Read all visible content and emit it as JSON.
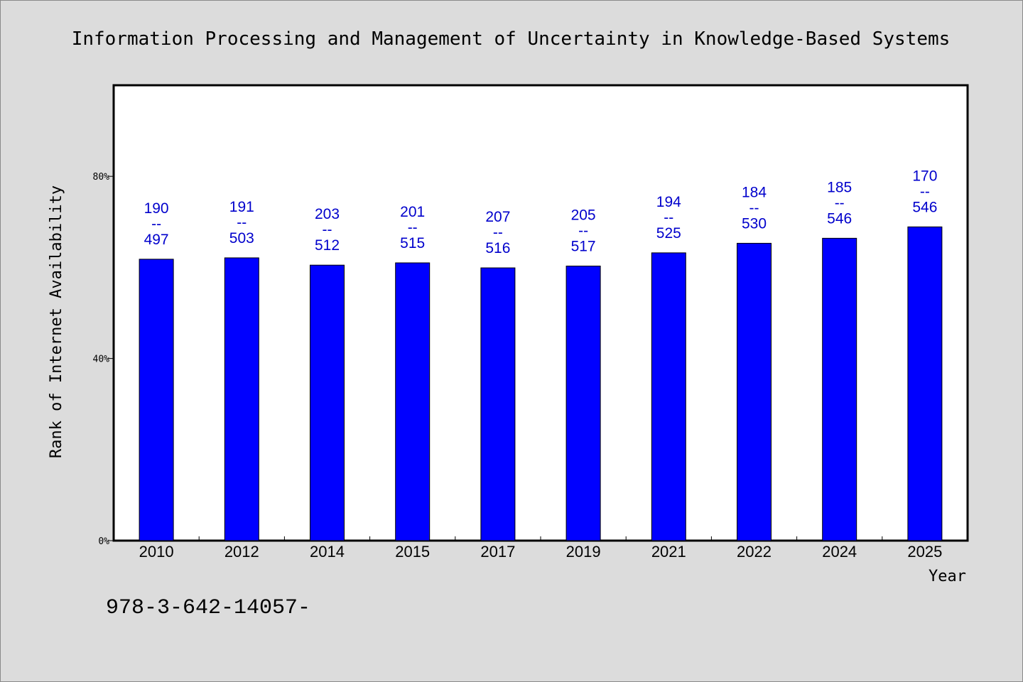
{
  "chart_data": {
    "type": "bar",
    "title": "Information Processing and Management of Uncertainty in Knowledge-Based Systems",
    "xlabel": "Year",
    "ylabel": "Rank of Internet Availability",
    "ylim": [
      0,
      100
    ],
    "yticks": [
      {
        "value": 0,
        "label": "0%"
      },
      {
        "value": 40,
        "label": "40%"
      },
      {
        "value": 80,
        "label": "80%"
      }
    ],
    "categories": [
      "2010",
      "2012",
      "2014",
      "2015",
      "2017",
      "2019",
      "2021",
      "2022",
      "2024",
      "2025"
    ],
    "series": [
      {
        "values": [
          61.8,
          62.1,
          60.5,
          61.0,
          59.9,
          60.3,
          63.2,
          65.3,
          66.4,
          68.9
        ],
        "color": "#0000ff"
      }
    ],
    "data_labels": [
      {
        "top": "190",
        "mid": "--",
        "bottom": "497"
      },
      {
        "top": "191",
        "mid": "--",
        "bottom": "503"
      },
      {
        "top": "203",
        "mid": "--",
        "bottom": "512"
      },
      {
        "top": "201",
        "mid": "--",
        "bottom": "515"
      },
      {
        "top": "207",
        "mid": "--",
        "bottom": "516"
      },
      {
        "top": "205",
        "mid": "--",
        "bottom": "517"
      },
      {
        "top": "194",
        "mid": "--",
        "bottom": "525"
      },
      {
        "top": "184",
        "mid": "--",
        "bottom": "530"
      },
      {
        "top": "185",
        "mid": "--",
        "bottom": "546"
      },
      {
        "top": "170",
        "mid": "--",
        "bottom": "546"
      }
    ],
    "label_color": "#0000cc",
    "grid": false,
    "legend": "none"
  },
  "footnote": "978-3-642-14057-"
}
